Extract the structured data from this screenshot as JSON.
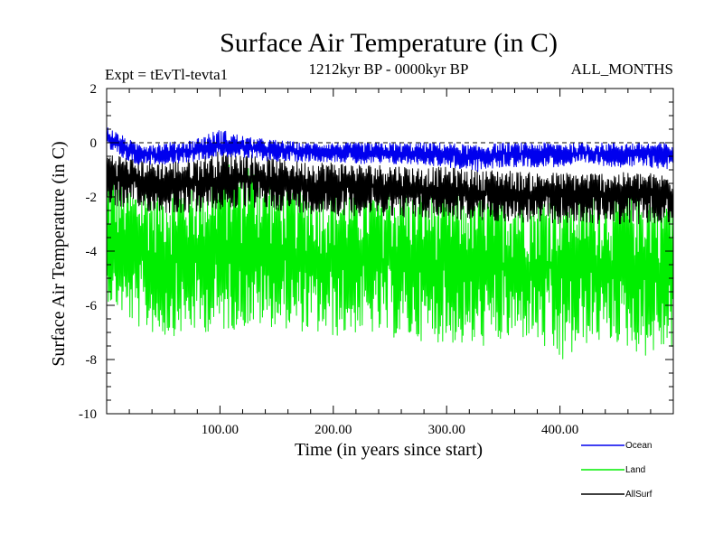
{
  "chart_data": {
    "type": "line",
    "title": "Surface Air Temperature (in C)",
    "subtitle_left": "Expt = tEvTl-tevta1",
    "subtitle_center": "1212kyr BP - 0000kyr BP",
    "subtitle_right": "ALL_MONTHS",
    "xlabel": "Time (in years since start)",
    "ylabel": "Surface Air Temperature (in C)",
    "xlim": [
      0,
      500
    ],
    "ylim": [
      -10,
      2
    ],
    "xticks": [
      100,
      200,
      300,
      400
    ],
    "xtick_labels": [
      "100.00",
      "200.00",
      "300.00",
      "400.00"
    ],
    "yticks": [
      2,
      0,
      -2,
      -4,
      -6,
      -8,
      -10
    ],
    "ytick_labels": [
      "2",
      "0",
      "-2",
      "-4",
      "-6",
      "-8",
      "-10"
    ],
    "reference_line_y": 0,
    "series": [
      {
        "name": "Land",
        "color": "#00ee00",
        "x": [
          0,
          25,
          50,
          75,
          100,
          125,
          150,
          175,
          200,
          225,
          250,
          275,
          300,
          325,
          350,
          375,
          400,
          425,
          450,
          475,
          500
        ],
        "mean": [
          -4.0,
          -4.2,
          -4.3,
          -4.3,
          -4.1,
          -4.1,
          -4.2,
          -4.3,
          -4.3,
          -4.4,
          -4.4,
          -4.5,
          -4.5,
          -4.6,
          -4.5,
          -4.6,
          -4.6,
          -4.5,
          -4.6,
          -4.6,
          -4.6
        ],
        "min": [
          -5.8,
          -6.8,
          -7.2,
          -7.0,
          -7.0,
          -6.8,
          -6.8,
          -7.0,
          -7.2,
          -7.0,
          -7.2,
          -7.3,
          -7.4,
          -7.6,
          -7.4,
          -7.2,
          -8.3,
          -7.4,
          -7.4,
          -7.9,
          -7.6
        ],
        "max": [
          -1.0,
          -1.6,
          -1.6,
          -1.4,
          -0.9,
          -0.5,
          -1.4,
          -1.6,
          -1.6,
          -1.8,
          -1.6,
          -1.8,
          -1.8,
          -2.0,
          -1.8,
          -2.0,
          -1.6,
          -2.0,
          -1.8,
          -1.8,
          -1.8
        ]
      },
      {
        "name": "AllSurf",
        "color": "#000000",
        "x": [
          0,
          25,
          50,
          75,
          100,
          125,
          150,
          175,
          200,
          225,
          250,
          275,
          300,
          325,
          350,
          375,
          400,
          425,
          450,
          475,
          500
        ],
        "mean": [
          -1.2,
          -1.4,
          -1.5,
          -1.5,
          -1.3,
          -1.3,
          -1.4,
          -1.5,
          -1.5,
          -1.6,
          -1.6,
          -1.7,
          -1.7,
          -1.8,
          -1.8,
          -1.9,
          -1.9,
          -1.9,
          -1.9,
          -1.9,
          -2.0
        ],
        "min": [
          -2.3,
          -2.5,
          -2.6,
          -2.6,
          -2.5,
          -2.4,
          -2.5,
          -2.6,
          -2.7,
          -2.7,
          -2.7,
          -2.8,
          -2.8,
          -2.9,
          -2.9,
          -3.0,
          -3.0,
          -3.0,
          -3.0,
          -3.0,
          -3.1
        ],
        "max": [
          -0.3,
          -0.6,
          -0.7,
          -0.6,
          -0.3,
          -0.4,
          -0.6,
          -0.7,
          -0.7,
          -0.8,
          -0.8,
          -0.9,
          -0.9,
          -1.0,
          -1.0,
          -1.1,
          -1.1,
          -1.1,
          -1.1,
          -1.1,
          -1.2
        ]
      },
      {
        "name": "Ocean",
        "color": "#0000ee",
        "x": [
          0,
          25,
          50,
          75,
          100,
          125,
          150,
          175,
          200,
          225,
          250,
          275,
          300,
          325,
          350,
          375,
          400,
          425,
          450,
          475,
          500
        ],
        "mean": [
          0.2,
          -0.4,
          -0.4,
          -0.3,
          -0.1,
          -0.2,
          -0.3,
          -0.3,
          -0.3,
          -0.4,
          -0.4,
          -0.4,
          -0.4,
          -0.5,
          -0.4,
          -0.4,
          -0.4,
          -0.4,
          -0.4,
          -0.4,
          -0.5
        ],
        "min": [
          -0.3,
          -0.8,
          -0.8,
          -0.7,
          -0.5,
          -0.6,
          -0.7,
          -0.7,
          -0.7,
          -0.8,
          -0.8,
          -0.8,
          -0.9,
          -1.1,
          -0.9,
          -0.9,
          -0.9,
          -0.8,
          -0.9,
          -0.9,
          -1.0
        ],
        "max": [
          0.6,
          0.0,
          0.0,
          0.1,
          0.5,
          0.2,
          0.1,
          0.0,
          0.0,
          0.0,
          0.0,
          0.0,
          0.0,
          -0.1,
          0.0,
          0.0,
          0.0,
          0.0,
          0.0,
          0.0,
          0.0
        ]
      }
    ],
    "legend": [
      {
        "label": "Ocean",
        "color": "#0000ee"
      },
      {
        "label": "Land",
        "color": "#00ee00"
      },
      {
        "label": "AllSurf",
        "color": "#000000"
      }
    ]
  }
}
